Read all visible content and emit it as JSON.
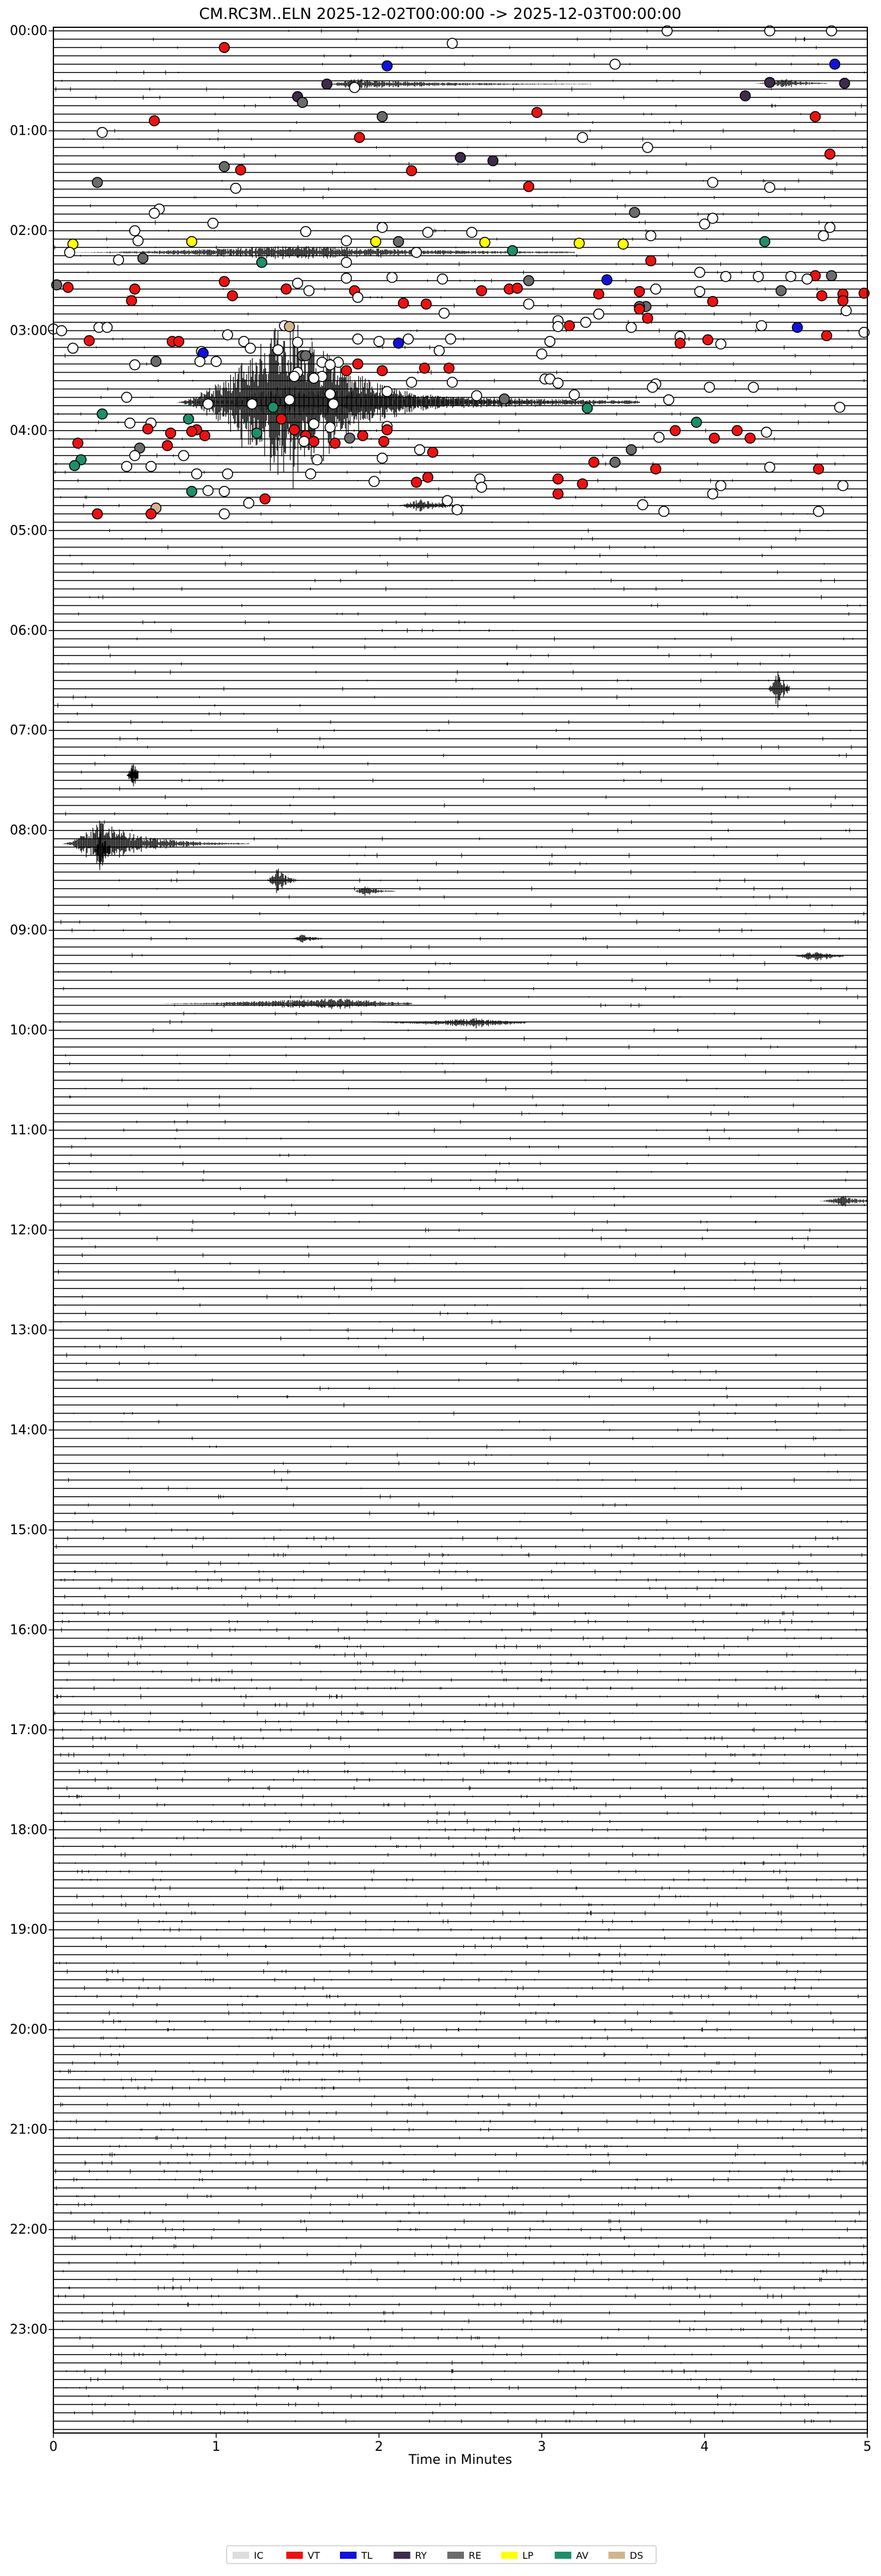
{
  "chart_data": {
    "type": "helicorder",
    "title": "CM.RC3M..ELN  2025-12-02T00:00:00 -> 2025-12-03T00:00:00",
    "xlabel": "Time in Minutes",
    "xlim": [
      0,
      5
    ],
    "x_ticks": [
      "0",
      "1",
      "2",
      "3",
      "4",
      "5"
    ],
    "y_range_hours": [
      0,
      24
    ],
    "traces_per_hour": 12,
    "minutes_per_trace": 5,
    "y_ticks": [
      {
        "label": "00:00",
        "hour": 0
      },
      {
        "label": "01:00",
        "hour": 1
      },
      {
        "label": "02:00",
        "hour": 2
      },
      {
        "label": "03:00",
        "hour": 3
      },
      {
        "label": "04:00",
        "hour": 4
      },
      {
        "label": "05:00",
        "hour": 5
      },
      {
        "label": "06:00",
        "hour": 6
      },
      {
        "label": "07:00",
        "hour": 7
      },
      {
        "label": "08:00",
        "hour": 8
      },
      {
        "label": "09:00",
        "hour": 9
      },
      {
        "label": "10:00",
        "hour": 10
      },
      {
        "label": "11:00",
        "hour": 11
      },
      {
        "label": "12:00",
        "hour": 12
      },
      {
        "label": "13:00",
        "hour": 13
      },
      {
        "label": "14:00",
        "hour": 14
      },
      {
        "label": "15:00",
        "hour": 15
      },
      {
        "label": "16:00",
        "hour": 16
      },
      {
        "label": "17:00",
        "hour": 17
      },
      {
        "label": "18:00",
        "hour": 18
      },
      {
        "label": "19:00",
        "hour": 19
      },
      {
        "label": "20:00",
        "hour": 20
      },
      {
        "label": "21:00",
        "hour": 21
      },
      {
        "label": "22:00",
        "hour": 22
      },
      {
        "label": "23:00",
        "hour": 23
      }
    ],
    "legend_position": "bottom-center",
    "legend": [
      {
        "label": "IC",
        "color": "#dddddd"
      },
      {
        "label": "VT",
        "color": "#ee1111"
      },
      {
        "label": "TL",
        "color": "#1111dd"
      },
      {
        "label": "RY",
        "color": "#3e2a4a"
      },
      {
        "label": "RE",
        "color": "#6b6b6b"
      },
      {
        "label": "LP",
        "color": "#ffff00"
      },
      {
        "label": "AV",
        "color": "#1e8f68"
      },
      {
        "label": "DS",
        "color": "#d2b48c"
      }
    ],
    "event_colors": {
      "W": "#ffffff",
      "R": "#ee1111",
      "B": "#1111dd",
      "P": "#3e2a4a",
      "G": "#6b6b6b",
      "Y": "#ffff00",
      "A": "#1e8f68",
      "T": "#d2b48c"
    },
    "events": [
      [
        0.0,
        3.77,
        "W"
      ],
      [
        0.0,
        4.4,
        "W"
      ],
      [
        0.0,
        4.78,
        "W"
      ],
      [
        2.0,
        1.05,
        "R"
      ],
      [
        1.5,
        2.45,
        "W"
      ],
      [
        4.2,
        2.05,
        "B"
      ],
      [
        4.0,
        3.45,
        "W"
      ],
      [
        4.0,
        4.8,
        "B"
      ],
      [
        6.2,
        4.4,
        "P"
      ],
      [
        6.3,
        4.86,
        "P"
      ],
      [
        6.4,
        1.68,
        "P"
      ],
      [
        6.8,
        1.85,
        "W"
      ],
      [
        7.8,
        4.25,
        "P"
      ],
      [
        7.9,
        1.5,
        "P"
      ],
      [
        8.6,
        1.53,
        "G"
      ],
      [
        9.8,
        2.97,
        "R"
      ],
      [
        10.3,
        2.02,
        "G"
      ],
      [
        10.3,
        4.68,
        "R"
      ],
      [
        10.8,
        0.62,
        "R"
      ],
      [
        12.2,
        0.3,
        "W"
      ],
      [
        12.8,
        1.88,
        "R"
      ],
      [
        12.8,
        3.25,
        "W"
      ],
      [
        14.0,
        3.65,
        "W"
      ],
      [
        14.8,
        4.77,
        "R"
      ],
      [
        15.2,
        2.5,
        "P"
      ],
      [
        15.6,
        2.7,
        "P"
      ],
      [
        16.3,
        1.05,
        "G"
      ],
      [
        16.7,
        1.15,
        "R"
      ],
      [
        16.8,
        2.2,
        "R"
      ],
      [
        18.2,
        0.27,
        "G"
      ],
      [
        18.2,
        4.05,
        "W"
      ],
      [
        18.7,
        2.92,
        "R"
      ],
      [
        18.9,
        1.12,
        "W"
      ],
      [
        18.8,
        4.4,
        "W"
      ],
      [
        21.4,
        0.65,
        "W"
      ],
      [
        21.9,
        0.62,
        "W"
      ],
      [
        21.8,
        3.57,
        "G"
      ],
      [
        22.5,
        4.05,
        "W"
      ],
      [
        23.1,
        0.98,
        "W"
      ],
      [
        23.2,
        4.0,
        "W"
      ],
      [
        23.6,
        2.02,
        "W"
      ],
      [
        23.6,
        4.77,
        "W"
      ],
      [
        24.0,
        0.5,
        "W"
      ],
      [
        24.1,
        1.55,
        "W"
      ],
      [
        24.2,
        2.3,
        "W"
      ],
      [
        24.2,
        2.57,
        "W"
      ],
      [
        24.6,
        4.73,
        "W"
      ],
      [
        24.6,
        3.67,
        "W"
      ],
      [
        25.2,
        0.52,
        "W"
      ],
      [
        25.2,
        1.8,
        "W"
      ],
      [
        25.3,
        2.12,
        "G"
      ],
      [
        25.3,
        4.37,
        "A"
      ],
      [
        25.6,
        0.12,
        "Y"
      ],
      [
        25.3,
        0.85,
        "Y"
      ],
      [
        25.3,
        1.98,
        "Y"
      ],
      [
        25.4,
        2.65,
        "Y"
      ],
      [
        25.5,
        3.23,
        "Y"
      ],
      [
        25.6,
        3.5,
        "Y"
      ],
      [
        26.4,
        2.82,
        "A"
      ],
      [
        26.6,
        0.1,
        "W"
      ],
      [
        26.6,
        2.23,
        "W"
      ],
      [
        27.3,
        0.55,
        "G"
      ],
      [
        27.5,
        0.4,
        "W"
      ],
      [
        27.6,
        3.67,
        "R"
      ],
      [
        27.8,
        1.28,
        "A"
      ],
      [
        27.8,
        1.8,
        "W"
      ],
      [
        29.0,
        3.97,
        "W"
      ],
      [
        29.5,
        4.13,
        "W"
      ],
      [
        29.5,
        4.33,
        "W"
      ],
      [
        29.5,
        4.53,
        "W"
      ],
      [
        29.4,
        4.68,
        "R"
      ],
      [
        29.4,
        4.78,
        "G"
      ],
      [
        29.7,
        1.8,
        "W"
      ],
      [
        29.6,
        2.08,
        "W"
      ],
      [
        29.8,
        2.39,
        "W"
      ],
      [
        29.8,
        4.63,
        "W"
      ],
      [
        29.9,
        3.4,
        "B"
      ],
      [
        30.0,
        2.92,
        "G"
      ],
      [
        30.1,
        1.05,
        "R"
      ],
      [
        30.3,
        1.5,
        "W"
      ],
      [
        30.5,
        0.02,
        "G"
      ],
      [
        30.8,
        0.09,
        "R"
      ],
      [
        31.0,
        0.5,
        "R"
      ],
      [
        31.0,
        1.43,
        "R"
      ],
      [
        31.2,
        1.85,
        "R"
      ],
      [
        31.0,
        2.8,
        "R"
      ],
      [
        31.0,
        3.7,
        "W"
      ],
      [
        30.9,
        2.85,
        "R"
      ],
      [
        31.2,
        2.63,
        "R"
      ],
      [
        31.3,
        3.6,
        "R"
      ],
      [
        31.3,
        3.97,
        "W"
      ],
      [
        31.2,
        1.57,
        "W"
      ],
      [
        31.6,
        3.35,
        "R"
      ],
      [
        31.2,
        4.47,
        "G"
      ],
      [
        31.5,
        4.98,
        "R"
      ],
      [
        31.6,
        4.85,
        "R"
      ],
      [
        31.8,
        4.72,
        "R"
      ],
      [
        31.8,
        1.1,
        "R"
      ],
      [
        32.0,
        1.87,
        "W"
      ],
      [
        32.4,
        0.48,
        "R"
      ],
      [
        32.5,
        4.05,
        "R"
      ],
      [
        32.4,
        4.85,
        "R"
      ],
      [
        32.7,
        2.15,
        "R"
      ],
      [
        32.8,
        2.29,
        "R"
      ],
      [
        32.8,
        2.92,
        "W"
      ],
      [
        33.1,
        3.64,
        "G"
      ],
      [
        33.1,
        3.6,
        "G"
      ],
      [
        33.4,
        3.6,
        "R"
      ],
      [
        33.6,
        4.87,
        "W"
      ],
      [
        33.9,
        2.4,
        "W"
      ],
      [
        34.0,
        3.35,
        "W"
      ],
      [
        34.5,
        3.65,
        "R"
      ],
      [
        34.8,
        3.1,
        "W"
      ],
      [
        35.0,
        3.27,
        "W"
      ],
      [
        35.4,
        4.35,
        "W"
      ],
      [
        35.6,
        0.28,
        "W"
      ],
      [
        35.6,
        0.33,
        "W"
      ],
      [
        35.6,
        3.55,
        "W"
      ],
      [
        35.4,
        3.17,
        "R"
      ],
      [
        35.4,
        1.42,
        "W"
      ],
      [
        35.5,
        3.1,
        "W"
      ],
      [
        35.5,
        1.45,
        "T"
      ],
      [
        35.6,
        4.57,
        "B"
      ],
      [
        35.8,
        0.0,
        "W"
      ],
      [
        36.0,
        0.05,
        "W"
      ],
      [
        36.2,
        4.98,
        "W"
      ],
      [
        36.5,
        1.07,
        "W"
      ],
      [
        36.6,
        4.75,
        "R"
      ],
      [
        36.7,
        3.85,
        "W"
      ],
      [
        37.0,
        2.18,
        "W"
      ],
      [
        37.0,
        2.44,
        "W"
      ],
      [
        37.0,
        1.87,
        "W"
      ],
      [
        37.3,
        1.17,
        "W"
      ],
      [
        37.3,
        2.0,
        "W"
      ],
      [
        37.3,
        3.05,
        "W"
      ],
      [
        37.1,
        4.02,
        "R"
      ],
      [
        37.2,
        0.22,
        "R"
      ],
      [
        37.3,
        0.73,
        "R"
      ],
      [
        37.3,
        0.77,
        "R"
      ],
      [
        37.5,
        3.85,
        "R"
      ],
      [
        37.6,
        4.1,
        "W"
      ],
      [
        37.4,
        1.5,
        "W"
      ],
      [
        37.5,
        2.12,
        "B"
      ],
      [
        38.1,
        0.12,
        "W"
      ],
      [
        38.1,
        1.21,
        "W"
      ],
      [
        38.3,
        1.38,
        "W"
      ],
      [
        38.4,
        2.37,
        "W"
      ],
      [
        38.5,
        0.91,
        "W"
      ],
      [
        38.7,
        0.92,
        "B"
      ],
      [
        38.8,
        3.0,
        "W"
      ],
      [
        39.0,
        1.53,
        "G"
      ],
      [
        39.0,
        1.55,
        "G"
      ],
      [
        39.7,
        0.63,
        "G"
      ],
      [
        39.7,
        0.9,
        "W"
      ],
      [
        39.7,
        1.0,
        "W"
      ],
      [
        39.8,
        1.65,
        "W"
      ],
      [
        39.8,
        1.75,
        "W"
      ],
      [
        40.0,
        1.87,
        "R"
      ],
      [
        40.1,
        0.5,
        "W"
      ],
      [
        40.1,
        1.7,
        "W"
      ],
      [
        40.5,
        2.28,
        "R"
      ],
      [
        40.5,
        2.43,
        "R"
      ],
      [
        40.8,
        1.8,
        "R"
      ],
      [
        40.8,
        2.02,
        "R"
      ],
      [
        41.0,
        1.5,
        "W"
      ],
      [
        41.5,
        1.48,
        "W"
      ],
      [
        41.5,
        1.65,
        "W"
      ],
      [
        41.7,
        1.6,
        "W"
      ],
      [
        41.8,
        3.02,
        "W"
      ],
      [
        41.8,
        3.05,
        "W"
      ],
      [
        42.2,
        2.2,
        "W"
      ],
      [
        42.2,
        2.45,
        "W"
      ],
      [
        42.3,
        3.1,
        "W"
      ],
      [
        42.4,
        3.7,
        "W"
      ],
      [
        42.8,
        3.68,
        "W"
      ],
      [
        42.8,
        4.03,
        "W"
      ],
      [
        42.8,
        4.3,
        "W"
      ],
      [
        43.3,
        2.05,
        "W"
      ],
      [
        43.6,
        1.7,
        "W"
      ],
      [
        43.8,
        2.6,
        "W"
      ],
      [
        43.7,
        3.2,
        "W"
      ],
      [
        44.0,
        0.45,
        "W"
      ],
      [
        44.3,
        1.45,
        "W"
      ],
      [
        44.2,
        2.77,
        "G"
      ],
      [
        44.3,
        3.78,
        "W"
      ],
      [
        44.8,
        0.95,
        "W"
      ],
      [
        44.8,
        1.22,
        "W"
      ],
      [
        44.8,
        1.72,
        "W"
      ],
      [
        45.2,
        1.35,
        "A"
      ],
      [
        45.3,
        3.28,
        "A"
      ],
      [
        45.2,
        4.83,
        "W"
      ],
      [
        46.0,
        0.3,
        "A"
      ],
      [
        46.6,
        1.4,
        "R"
      ],
      [
        46.6,
        0.83,
        "A"
      ],
      [
        47.1,
        0.47,
        "W"
      ],
      [
        47.1,
        0.6,
        "W"
      ],
      [
        47.0,
        3.95,
        "A"
      ],
      [
        47.2,
        1.6,
        "W"
      ],
      [
        47.6,
        1.7,
        "W"
      ],
      [
        47.5,
        2.05,
        "W"
      ],
      [
        47.8,
        0.58,
        "R"
      ],
      [
        47.9,
        0.88,
        "R"
      ],
      [
        47.9,
        1.48,
        "R"
      ],
      [
        47.9,
        2.05,
        "R"
      ],
      [
        48.1,
        0.85,
        "R"
      ],
      [
        48.0,
        3.82,
        "R"
      ],
      [
        48.0,
        4.2,
        "R"
      ],
      [
        48.2,
        4.38,
        "W"
      ],
      [
        48.3,
        1.25,
        "A"
      ],
      [
        48.3,
        0.72,
        "R"
      ],
      [
        48.6,
        0.93,
        "R"
      ],
      [
        48.6,
        1.55,
        "R"
      ],
      [
        48.6,
        1.9,
        "R"
      ],
      [
        48.8,
        3.72,
        "W"
      ],
      [
        48.9,
        1.82,
        "G"
      ],
      [
        48.9,
        4.06,
        "R"
      ],
      [
        48.9,
        4.28,
        "R"
      ],
      [
        49.3,
        1.54,
        "W"
      ],
      [
        49.3,
        1.6,
        "R"
      ],
      [
        49.3,
        2.03,
        "R"
      ],
      [
        49.5,
        0.15,
        "R"
      ],
      [
        49.5,
        1.73,
        "R"
      ],
      [
        49.8,
        0.7,
        "R"
      ],
      [
        50.1,
        0.53,
        "G"
      ],
      [
        50.3,
        2.25,
        "W"
      ],
      [
        50.3,
        3.55,
        "G"
      ],
      [
        50.6,
        2.33,
        "R"
      ],
      [
        51.0,
        0.5,
        "W"
      ],
      [
        51.0,
        0.8,
        "W"
      ],
      [
        51.3,
        2.02,
        "W"
      ],
      [
        51.8,
        3.32,
        "R"
      ],
      [
        51.8,
        3.45,
        "G"
      ],
      [
        51.5,
        0.17,
        "A"
      ],
      [
        51.5,
        1.62,
        "W"
      ],
      [
        52.2,
        0.13,
        "A"
      ],
      [
        52.3,
        0.45,
        "W"
      ],
      [
        52.3,
        0.6,
        "W"
      ],
      [
        52.6,
        3.7,
        "R"
      ],
      [
        52.4,
        4.4,
        "W"
      ],
      [
        52.6,
        4.7,
        "R"
      ],
      [
        53.2,
        0.88,
        "W"
      ],
      [
        53.2,
        1.07,
        "W"
      ],
      [
        53.2,
        1.58,
        "W"
      ],
      [
        53.6,
        2.3,
        "R"
      ],
      [
        53.8,
        2.62,
        "W"
      ],
      [
        53.8,
        3.1,
        "R"
      ],
      [
        54.1,
        1.97,
        "W"
      ],
      [
        54.2,
        2.23,
        "R"
      ],
      [
        54.4,
        3.25,
        "R"
      ],
      [
        54.6,
        4.85,
        "W"
      ],
      [
        54.6,
        4.1,
        "W"
      ],
      [
        54.8,
        2.63,
        "W"
      ],
      [
        55.2,
        0.95,
        "W"
      ],
      [
        55.3,
        0.85,
        "A"
      ],
      [
        55.3,
        1.05,
        "W"
      ],
      [
        55.6,
        3.1,
        "R"
      ],
      [
        55.6,
        4.05,
        "W"
      ],
      [
        56.2,
        1.3,
        "R"
      ],
      [
        56.4,
        2.42,
        "W"
      ],
      [
        56.7,
        1.2,
        "W"
      ],
      [
        56.9,
        3.62,
        "W"
      ],
      [
        57.3,
        0.63,
        "T"
      ],
      [
        57.5,
        2.48,
        "W"
      ],
      [
        57.7,
        3.75,
        "W"
      ],
      [
        57.7,
        4.7,
        "W"
      ],
      [
        58.0,
        0.27,
        "R"
      ],
      [
        58.0,
        0.6,
        "R"
      ],
      [
        58.0,
        1.05,
        "W"
      ]
    ]
  }
}
